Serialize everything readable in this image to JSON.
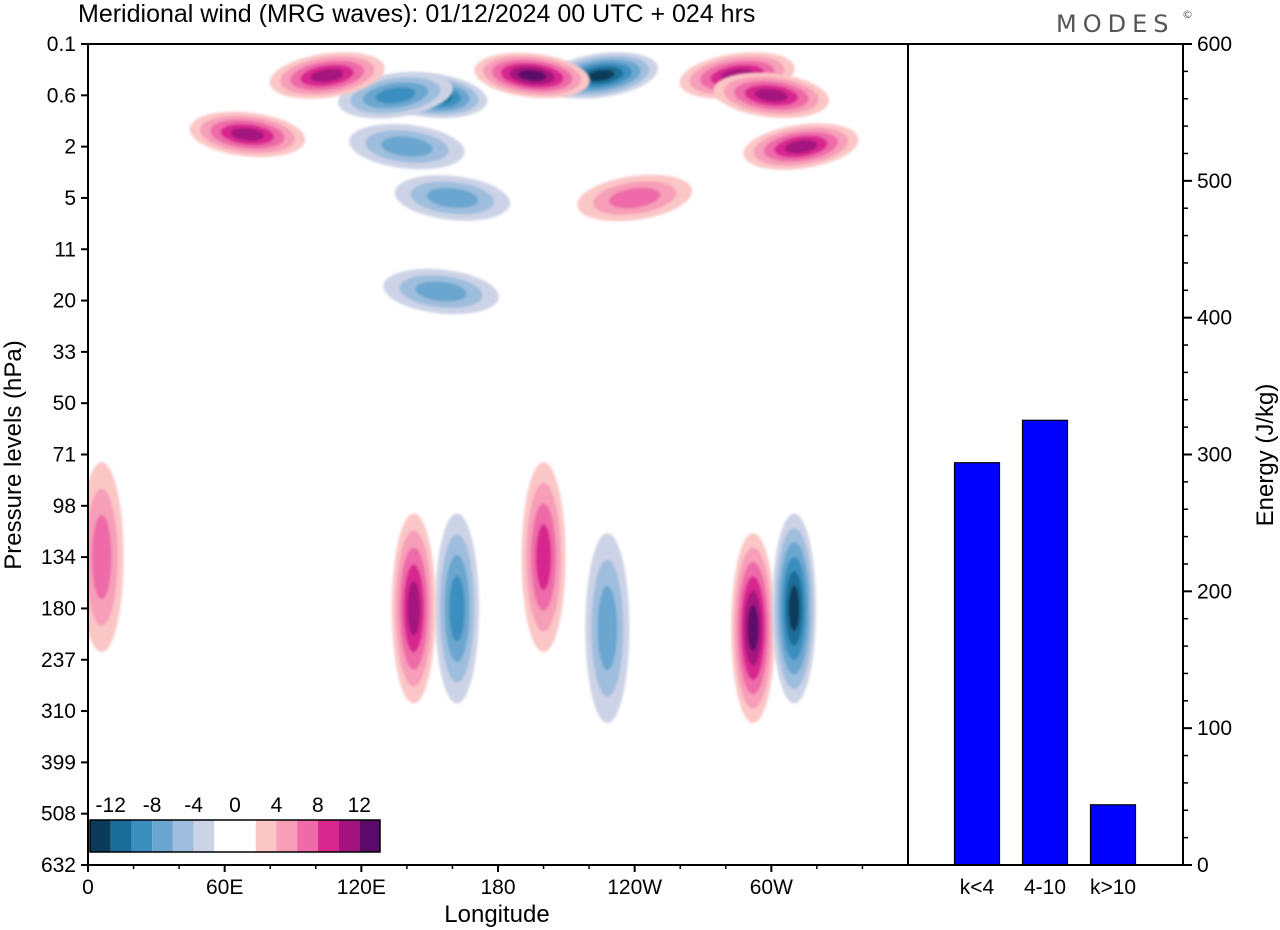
{
  "logo": "MODES",
  "logo_mark": "©",
  "chart_data": [
    {
      "type": "heatmap",
      "title": "Meridional wind (MRG waves):  01/12/2024  00 UTC  + 024 hrs",
      "xlabel": "Longitude",
      "ylabel": "Pressure levels (hPa)",
      "x_ticks": [
        "0",
        "60E",
        "120E",
        "180",
        "120W",
        "60W"
      ],
      "y_ticks": [
        "0.1",
        "0.6",
        "2",
        "5",
        "11",
        "20",
        "33",
        "50",
        "71",
        "98",
        "134",
        "180",
        "237",
        "310",
        "399",
        "508",
        "632"
      ],
      "colorbar": {
        "labels": [
          "-12",
          "-8",
          "-4",
          "0",
          "4",
          "8",
          "12"
        ],
        "colors": [
          "#0b3a5a",
          "#1a6d98",
          "#3b8fbe",
          "#6aa6cf",
          "#9fbede",
          "#cdd3e6",
          "#ffffff",
          "#ffffff",
          "#fbc6c6",
          "#f79eb8",
          "#ee6aa8",
          "#d8288f",
          "#a4137d",
          "#5b0a6b"
        ]
      },
      "features": [
        {
          "lon": 150,
          "lev": 0.6,
          "value": -12
        },
        {
          "lon": 135,
          "lev": 0.6,
          "value": -8
        },
        {
          "lon": 140,
          "lev": 2,
          "value": -5
        },
        {
          "lon": 225,
          "lev": 0.3,
          "value": -11
        },
        {
          "lon": 195,
          "lev": 0.3,
          "value": 11
        },
        {
          "lon": 105,
          "lev": 0.3,
          "value": 10
        },
        {
          "lon": 70,
          "lev": 1.5,
          "value": 9
        },
        {
          "lon": 285,
          "lev": 0.3,
          "value": 10
        },
        {
          "lon": 300,
          "lev": 0.6,
          "value": 9
        },
        {
          "lon": 313,
          "lev": 2,
          "value": 10
        },
        {
          "lon": 160,
          "lev": 5,
          "value": -5
        },
        {
          "lon": 240,
          "lev": 5,
          "value": 6
        },
        {
          "lon": 155,
          "lev": 18,
          "value": -5
        },
        {
          "lon": 162,
          "lev": 180,
          "value": -8
        },
        {
          "lon": 143,
          "lev": 180,
          "value": 9
        },
        {
          "lon": 200,
          "lev": 134,
          "value": 7
        },
        {
          "lon": 292,
          "lev": 200,
          "value": 13
        },
        {
          "lon": 310,
          "lev": 180,
          "value": -12
        },
        {
          "lon": 228,
          "lev": 200,
          "value": -6
        },
        {
          "lon": 6,
          "lev": 134,
          "value": 6
        }
      ]
    },
    {
      "type": "bar",
      "categories": [
        "k<4",
        "4-10",
        "k>10"
      ],
      "values": [
        294,
        325,
        44
      ],
      "ylabel": "Energy (J/kg)",
      "ylim": [
        0,
        600
      ],
      "y_ticks": [
        "0",
        "100",
        "200",
        "300",
        "400",
        "500",
        "600"
      ],
      "bar_color": "#0000ff"
    }
  ]
}
